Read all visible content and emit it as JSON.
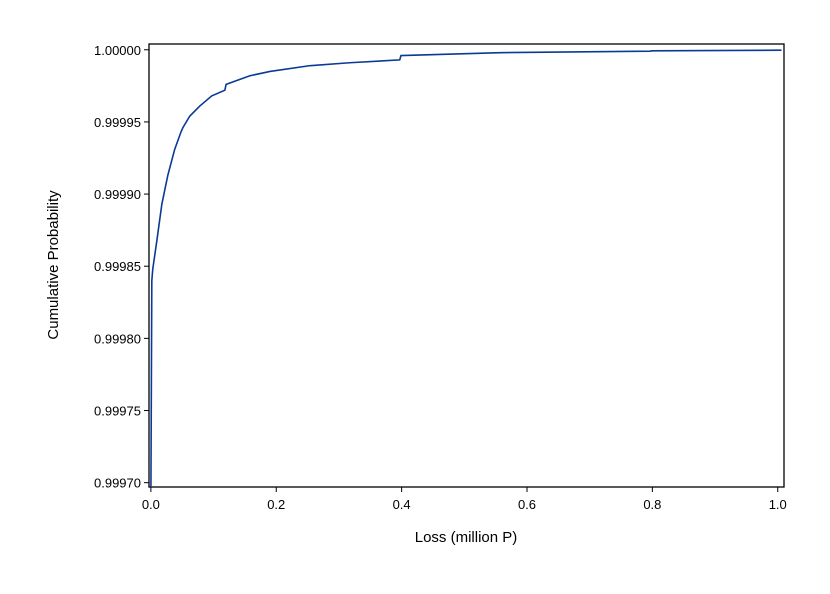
{
  "chart_data": {
    "type": "line",
    "x_label": "Loss (million P)",
    "y_label": "Cumulative Probability",
    "series": [
      {
        "color": "#0a3a96",
        "x": [
          0.0,
          0.0015,
          0.003,
          0.0096,
          0.0175,
          0.027,
          0.038,
          0.048,
          0.051,
          0.062,
          0.078,
          0.097,
          0.118,
          0.12,
          0.158,
          0.19,
          0.254,
          0.317,
          0.397,
          0.399,
          0.557,
          0.796,
          0.8,
          1.006
        ],
        "values": [
          0.99969,
          0.99984,
          0.999848,
          0.999868,
          0.999893,
          0.999913,
          0.999931,
          0.999943,
          0.999946,
          0.999954,
          0.999961,
          0.999968,
          0.999972,
          0.999976,
          0.999982,
          0.999985,
          0.999989,
          0.999991,
          0.999993,
          0.999996,
          0.999998,
          0.999999,
          0.9999993,
          0.9999997
        ]
      }
    ],
    "xlim": [
      -0.003,
      1.01
    ],
    "ylim": [
      0.999697,
      1.000004
    ],
    "xticks": [
      {
        "value": 0,
        "label": "0.0"
      },
      0.2,
      0.4,
      0.6,
      0.8,
      {
        "value": 1,
        "label": "1.0"
      }
    ],
    "yticks": [
      {
        "value": 0.9997,
        "label": "0.99970"
      },
      {
        "value": 0.99975,
        "label": "0.99975"
      },
      {
        "value": 0.9998,
        "label": "0.99980"
      },
      {
        "value": 0.99985,
        "label": "0.99985"
      },
      {
        "value": 0.9999,
        "label": "0.99990"
      },
      {
        "value": 0.99995,
        "label": "0.99995"
      },
      {
        "value": 1,
        "label": "1.00000"
      }
    ]
  }
}
